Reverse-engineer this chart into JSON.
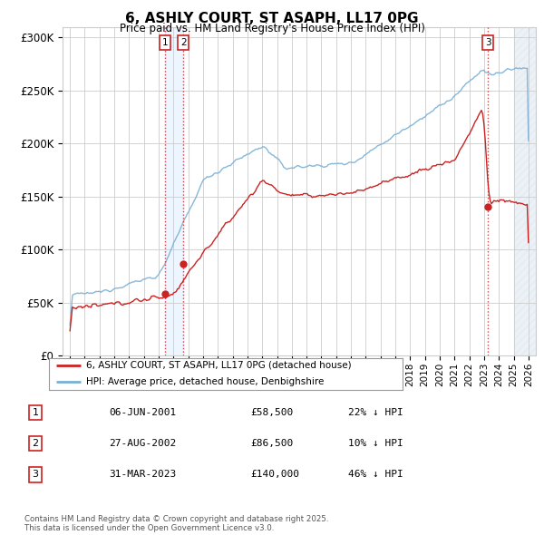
{
  "title": "6, ASHLY COURT, ST ASAPH, LL17 0PG",
  "subtitle": "Price paid vs. HM Land Registry's House Price Index (HPI)",
  "ylabel_ticks": [
    "£0",
    "£50K",
    "£100K",
    "£150K",
    "£200K",
    "£250K",
    "£300K"
  ],
  "ytick_values": [
    0,
    50000,
    100000,
    150000,
    200000,
    250000,
    300000
  ],
  "ylim": [
    0,
    310000
  ],
  "xlim_start": 1994.5,
  "xlim_end": 2026.5,
  "hpi_color": "#7ab0d4",
  "price_color": "#cc2222",
  "background_color": "#ffffff",
  "grid_color": "#cccccc",
  "shade_color_blue": "#ddeeff",
  "shade_color_hatch": "#e8e8e8",
  "transactions": [
    {
      "date_num": 2001.44,
      "price": 58500,
      "label": "1"
    },
    {
      "date_num": 2002.66,
      "price": 86500,
      "label": "2"
    },
    {
      "date_num": 2023.25,
      "price": 140000,
      "label": "3"
    }
  ],
  "transaction_table": [
    {
      "num": "1",
      "date": "06-JUN-2001",
      "price": "£58,500",
      "pct": "22% ↓ HPI"
    },
    {
      "num": "2",
      "date": "27-AUG-2002",
      "price": "£86,500",
      "pct": "10% ↓ HPI"
    },
    {
      "num": "3",
      "date": "31-MAR-2023",
      "price": "£140,000",
      "pct": "46% ↓ HPI"
    }
  ],
  "legend_items": [
    {
      "label": "6, ASHLY COURT, ST ASAPH, LL17 0PG (detached house)",
      "color": "#cc2222"
    },
    {
      "label": "HPI: Average price, detached house, Denbighshire",
      "color": "#7ab0d4"
    }
  ],
  "footnote": "Contains HM Land Registry data © Crown copyright and database right 2025.\nThis data is licensed under the Open Government Licence v3.0."
}
